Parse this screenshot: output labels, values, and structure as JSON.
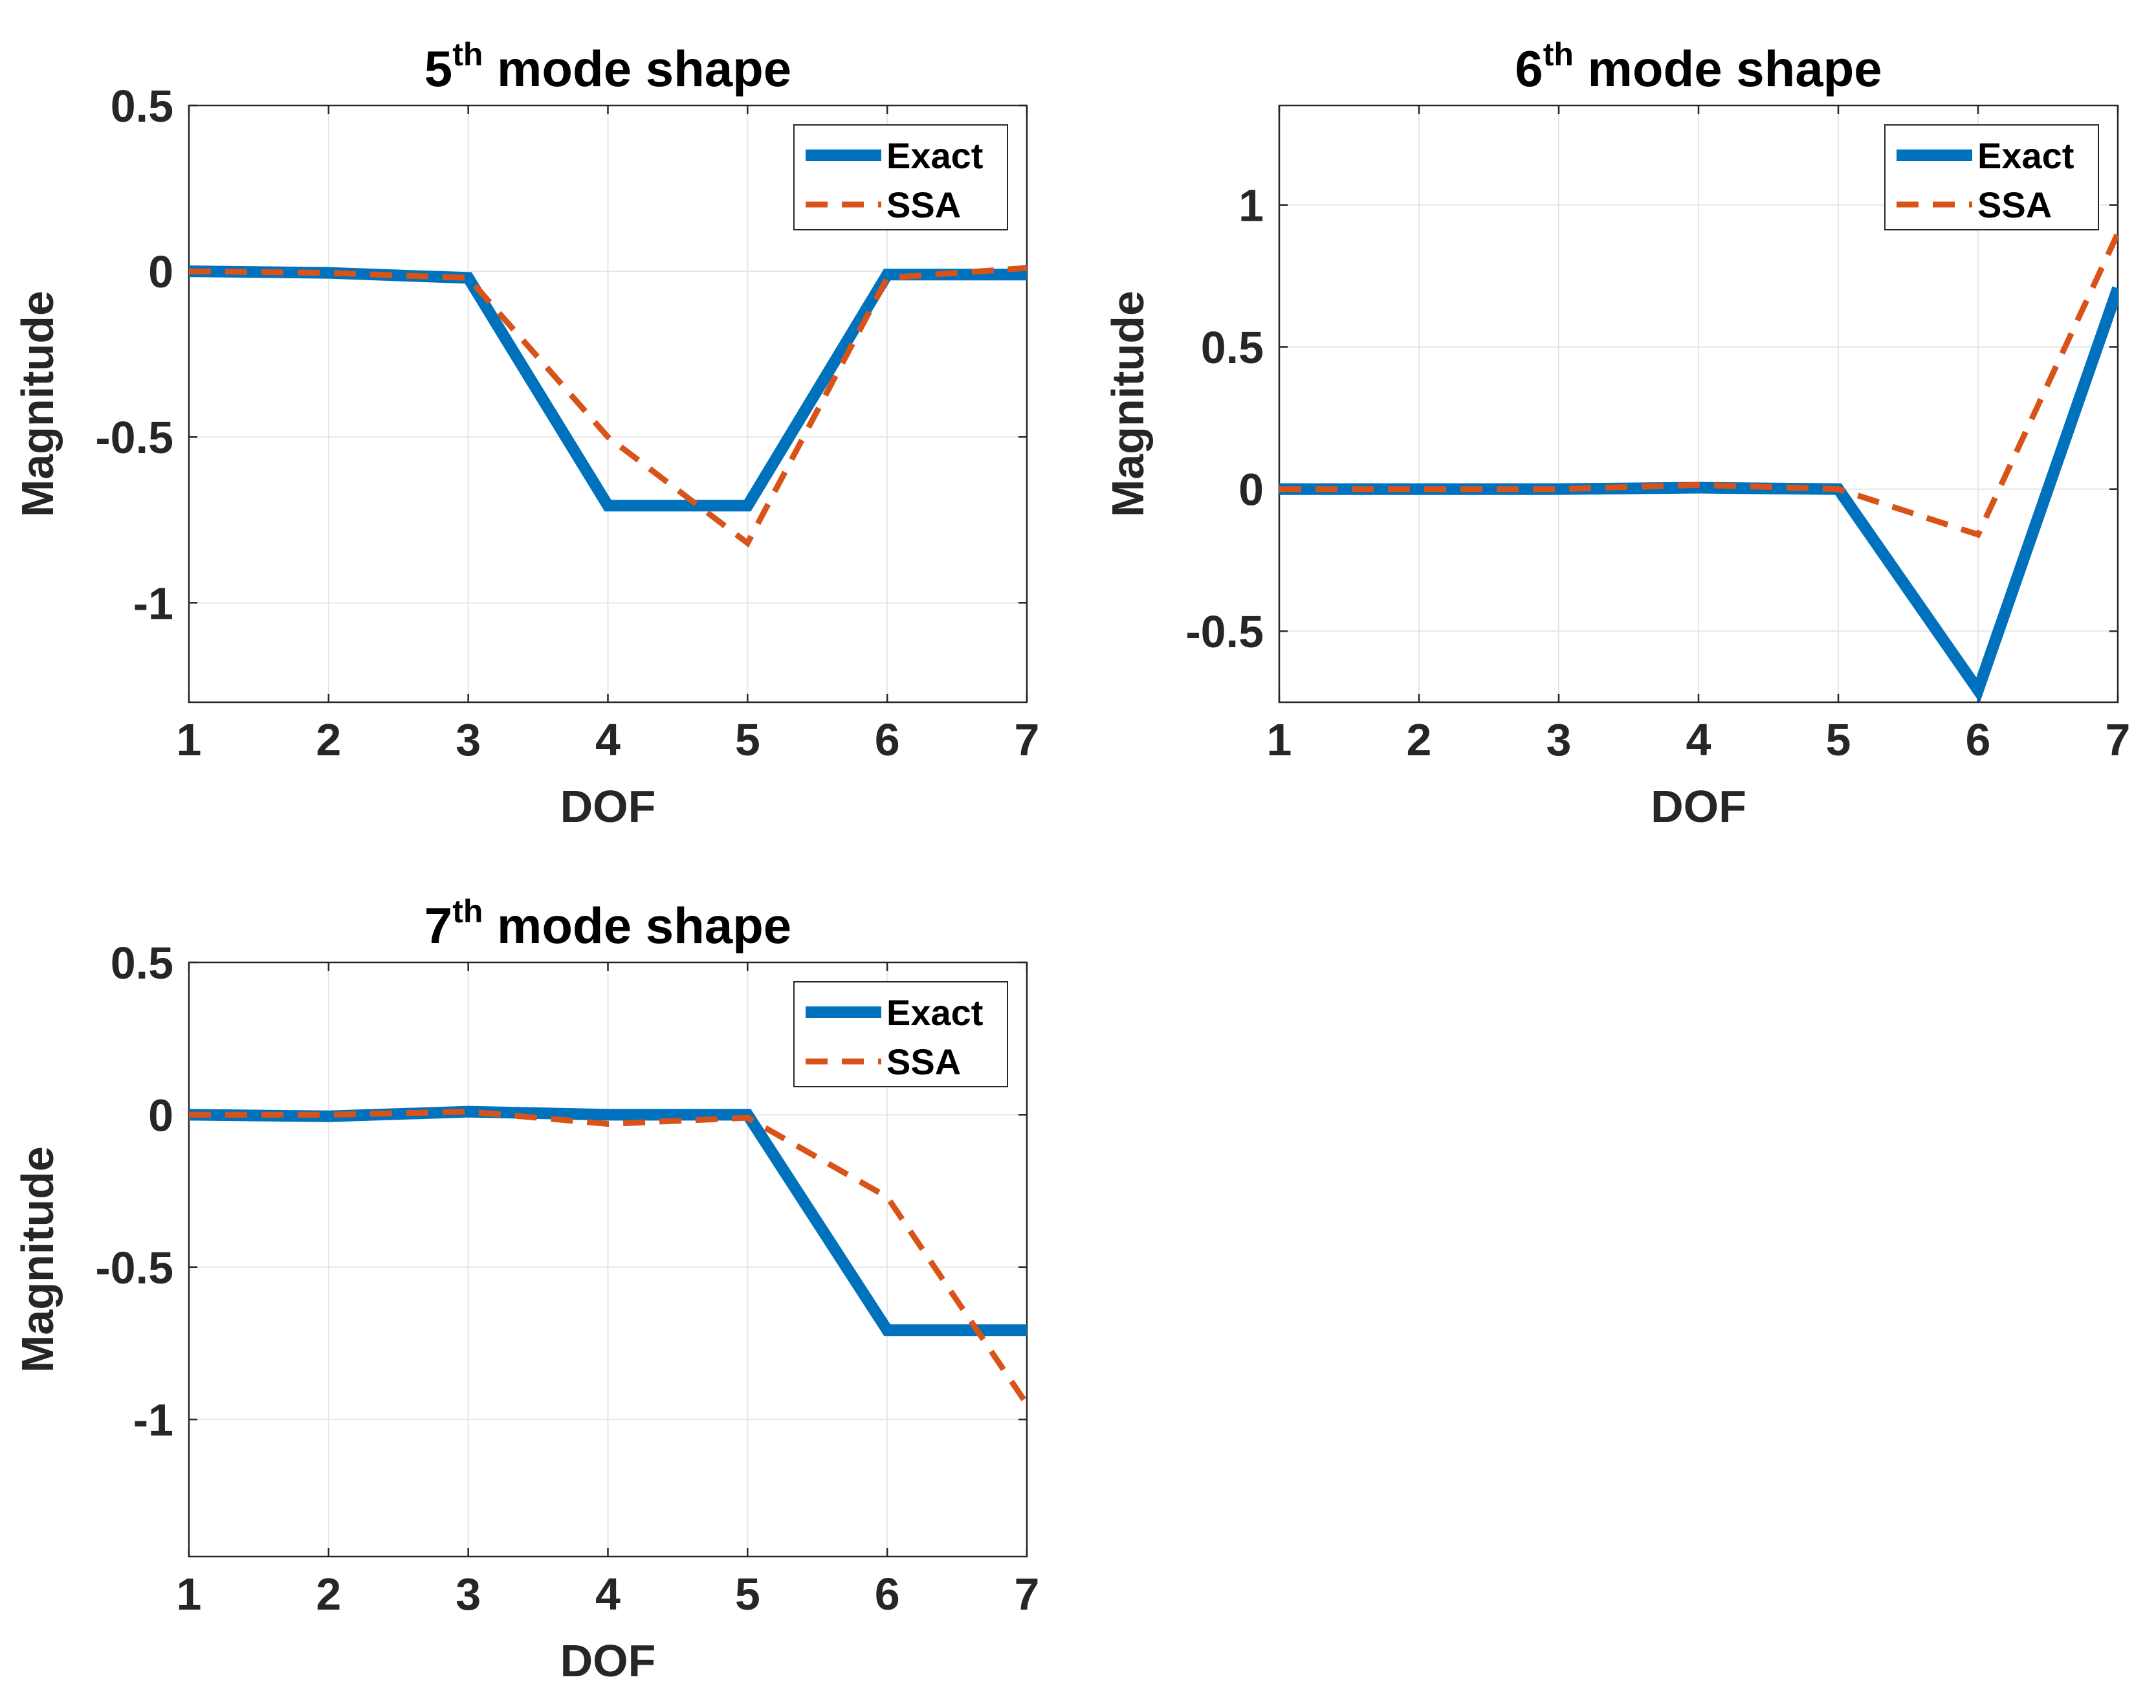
{
  "figure": {
    "background": "#ffffff",
    "colors": {
      "exact": "#0072BD",
      "ssa": "#D95319",
      "grid": "#e6e6e6",
      "axis": "#262626"
    }
  },
  "chart_data": [
    {
      "type": "line",
      "title": {
        "lead": "5",
        "sup": "th",
        "rest": " mode shape"
      },
      "xlabel": "DOF",
      "ylabel": "Magnitude",
      "xlim": [
        1,
        7
      ],
      "ylim": [
        -1.3,
        0.5
      ],
      "xticks": [
        1,
        2,
        3,
        4,
        5,
        6,
        7
      ],
      "yticks": [
        -1,
        -0.5,
        0,
        0.5
      ],
      "ytick_labels": [
        "-1",
        "-0.5",
        "0",
        "0.5"
      ],
      "grid": true,
      "legend": {
        "position": "top-right",
        "entries": [
          "Exact",
          "SSA"
        ]
      },
      "series": [
        {
          "name": "Exact",
          "style": "solid",
          "x": [
            1,
            2,
            3,
            4,
            5,
            6,
            7
          ],
          "y": [
            0.0,
            -0.005,
            -0.02,
            -0.707,
            -0.707,
            -0.01,
            -0.01
          ]
        },
        {
          "name": "SSA",
          "style": "dashed",
          "x": [
            1,
            2,
            3,
            4,
            5,
            6,
            7
          ],
          "y": [
            0.0,
            -0.005,
            -0.02,
            -0.5,
            -0.82,
            -0.02,
            0.01
          ]
        }
      ]
    },
    {
      "type": "line",
      "title": {
        "lead": "6",
        "sup": "th",
        "rest": " mode shape"
      },
      "xlabel": "DOF",
      "ylabel": "Magnitude",
      "xlim": [
        1,
        7
      ],
      "ylim": [
        -0.75,
        1.35
      ],
      "xticks": [
        1,
        2,
        3,
        4,
        5,
        6,
        7
      ],
      "yticks": [
        -0.5,
        0,
        0.5,
        1
      ],
      "ytick_labels": [
        "-0.5",
        "0",
        "0.5",
        "1"
      ],
      "grid": true,
      "legend": {
        "position": "top-right",
        "entries": [
          "Exact",
          "SSA"
        ]
      },
      "series": [
        {
          "name": "Exact",
          "style": "solid",
          "x": [
            1,
            2,
            3,
            4,
            5,
            6,
            7
          ],
          "y": [
            0.0,
            0.0,
            0.0,
            0.005,
            0.0,
            -0.707,
            0.707
          ]
        },
        {
          "name": "SSA",
          "style": "dashed",
          "x": [
            1,
            2,
            3,
            4,
            5,
            6,
            7
          ],
          "y": [
            0.0,
            0.0,
            0.0,
            0.015,
            0.0,
            -0.16,
            0.9
          ]
        }
      ]
    },
    {
      "type": "line",
      "title": {
        "lead": "7",
        "sup": "th",
        "rest": " mode shape"
      },
      "xlabel": "DOF",
      "ylabel": "Magnitude",
      "xlim": [
        1,
        7
      ],
      "ylim": [
        -1.45,
        0.5
      ],
      "xticks": [
        1,
        2,
        3,
        4,
        5,
        6,
        7
      ],
      "yticks": [
        -1,
        -0.5,
        0,
        0.5
      ],
      "ytick_labels": [
        "-1",
        "-0.5",
        "0",
        "0.5"
      ],
      "grid": true,
      "legend": {
        "position": "top-right",
        "entries": [
          "Exact",
          "SSA"
        ]
      },
      "series": [
        {
          "name": "Exact",
          "style": "solid",
          "x": [
            1,
            2,
            3,
            4,
            5,
            6,
            7
          ],
          "y": [
            0.0,
            -0.005,
            0.01,
            0.0,
            0.0,
            -0.707,
            -0.707
          ]
        },
        {
          "name": "SSA",
          "style": "dashed",
          "x": [
            1,
            2,
            3,
            4,
            5,
            6,
            7
          ],
          "y": [
            0.0,
            0.0,
            0.01,
            -0.03,
            -0.01,
            -0.27,
            -0.95
          ]
        }
      ]
    }
  ]
}
